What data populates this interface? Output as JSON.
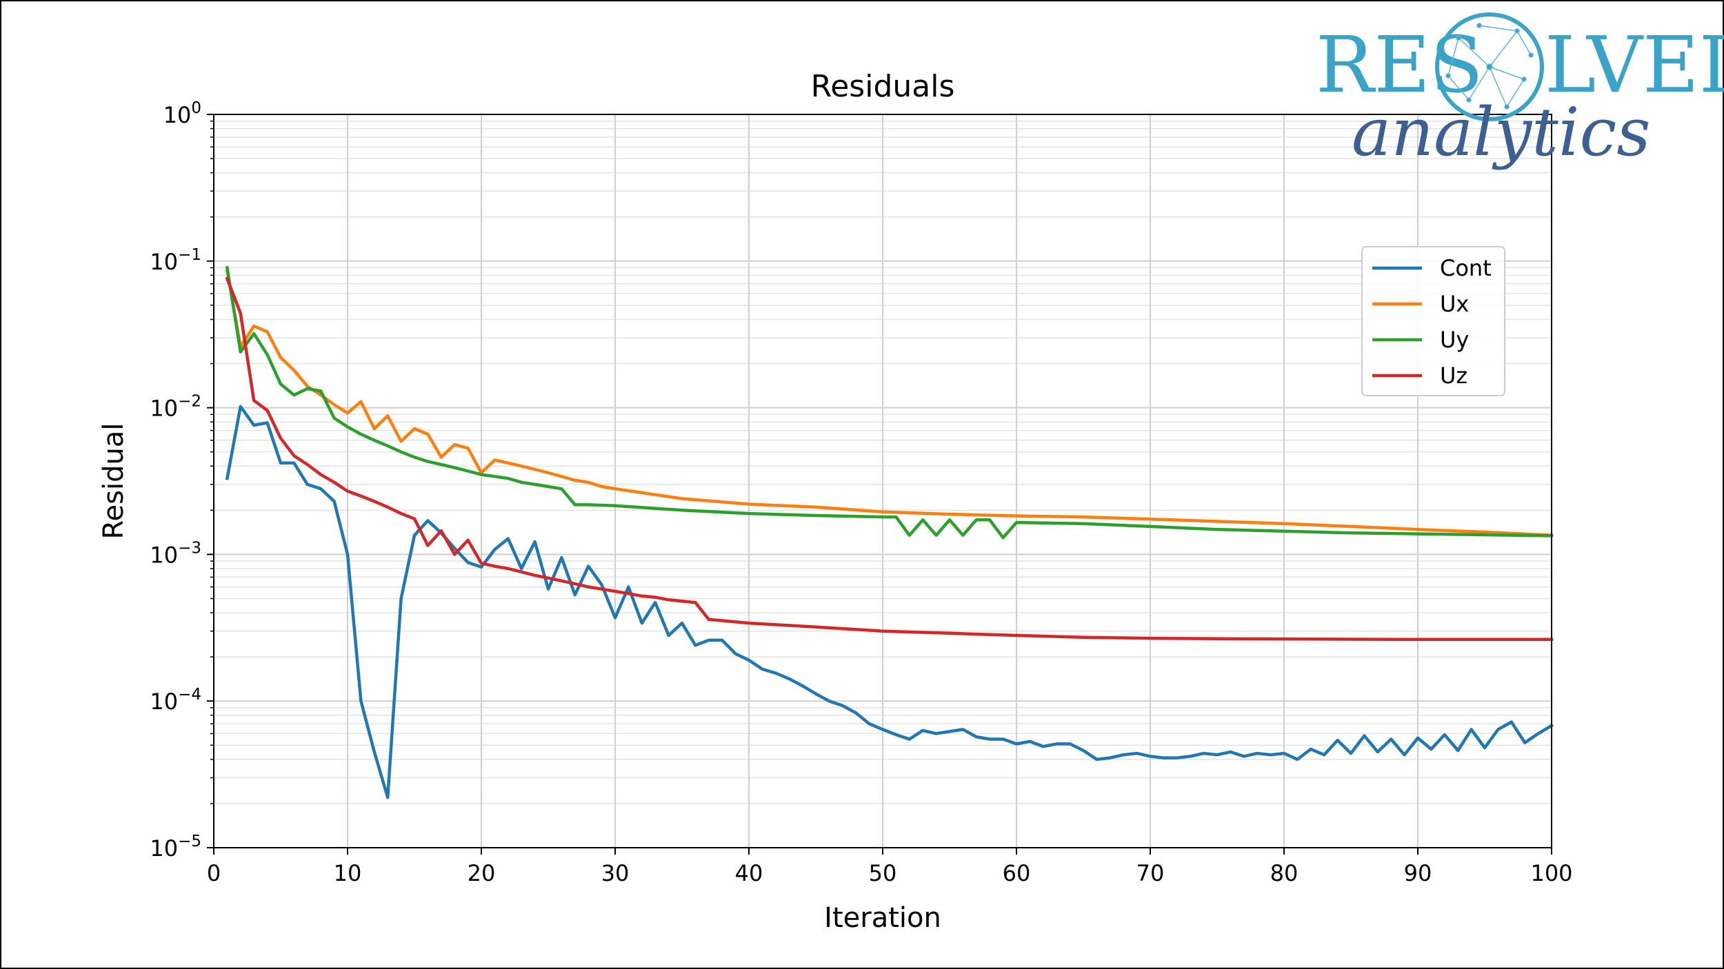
{
  "brand": {
    "word_left": "RES",
    "word_right": "LVED",
    "script": "analytics",
    "colors": {
      "word": "#3aa3c8",
      "script": "#3d5f92"
    }
  },
  "chart_data": {
    "type": "line",
    "title": "Residuals",
    "xlabel": "Iteration",
    "ylabel": "Residual",
    "xlim": [
      0,
      100
    ],
    "ylim": [
      1e-05,
      1
    ],
    "yscale": "log",
    "grid": true,
    "legend_position": "upper-right",
    "xticks": [
      "0",
      "10",
      "20",
      "30",
      "40",
      "50",
      "60",
      "70",
      "80",
      "90",
      "100"
    ],
    "yticks": [
      {
        "base": "10",
        "exp": "0"
      },
      {
        "base": "10",
        "exp": "−1"
      },
      {
        "base": "10",
        "exp": "−2"
      },
      {
        "base": "10",
        "exp": "−3"
      },
      {
        "base": "10",
        "exp": "−4"
      },
      {
        "base": "10",
        "exp": "−5"
      }
    ],
    "series": [
      {
        "name": "Cont",
        "color": "#1f77b4",
        "points": [
          [
            1,
            0.0033
          ],
          [
            2,
            0.0102
          ],
          [
            3,
            0.0076
          ],
          [
            4,
            0.0079
          ],
          [
            5,
            0.0042
          ],
          [
            6,
            0.0042
          ],
          [
            7,
            0.003
          ],
          [
            8,
            0.0028
          ],
          [
            9,
            0.0023
          ],
          [
            10,
            0.001
          ],
          [
            11,
            0.0001
          ],
          [
            12,
            4.5e-05
          ],
          [
            13,
            2.2e-05
          ],
          [
            14,
            0.0005
          ],
          [
            15,
            0.00135
          ],
          [
            16,
            0.0017
          ],
          [
            17,
            0.0014
          ],
          [
            18,
            0.0011
          ],
          [
            19,
            0.00088
          ],
          [
            20,
            0.00082
          ],
          [
            21,
            0.00108
          ],
          [
            22,
            0.00128
          ],
          [
            23,
            0.0008
          ],
          [
            24,
            0.00122
          ],
          [
            25,
            0.00058
          ],
          [
            26,
            0.00095
          ],
          [
            27,
            0.00053
          ],
          [
            28,
            0.00083
          ],
          [
            29,
            0.00062
          ],
          [
            30,
            0.00037
          ],
          [
            31,
            0.0006
          ],
          [
            32,
            0.00034
          ],
          [
            33,
            0.00047
          ],
          [
            34,
            0.00028
          ],
          [
            35,
            0.00034
          ],
          [
            36,
            0.00024
          ],
          [
            37,
            0.00026
          ],
          [
            38,
            0.00026
          ],
          [
            39,
            0.00021
          ],
          [
            40,
            0.00019
          ],
          [
            41,
            0.000165
          ],
          [
            42,
            0.000155
          ],
          [
            43,
            0.000142
          ],
          [
            44,
            0.000127
          ],
          [
            45,
            0.000112
          ],
          [
            46,
            0.0001
          ],
          [
            47,
            9.3e-05
          ],
          [
            48,
            8.3e-05
          ],
          [
            49,
            7e-05
          ],
          [
            50,
            6.4e-05
          ],
          [
            51,
            5.9e-05
          ],
          [
            52,
            5.5e-05
          ],
          [
            53,
            6.3e-05
          ],
          [
            54,
            6e-05
          ],
          [
            55,
            6.2e-05
          ],
          [
            56,
            6.4e-05
          ],
          [
            57,
            5.7e-05
          ],
          [
            58,
            5.5e-05
          ],
          [
            59,
            5.5e-05
          ],
          [
            60,
            5.1e-05
          ],
          [
            61,
            5.3e-05
          ],
          [
            62,
            4.9e-05
          ],
          [
            63,
            5.1e-05
          ],
          [
            64,
            5.1e-05
          ],
          [
            65,
            4.6e-05
          ],
          [
            66,
            4e-05
          ],
          [
            67,
            4.1e-05
          ],
          [
            68,
            4.3e-05
          ],
          [
            69,
            4.4e-05
          ],
          [
            70,
            4.2e-05
          ],
          [
            71,
            4.1e-05
          ],
          [
            72,
            4.1e-05
          ],
          [
            73,
            4.2e-05
          ],
          [
            74,
            4.4e-05
          ],
          [
            75,
            4.3e-05
          ],
          [
            76,
            4.5e-05
          ],
          [
            77,
            4.2e-05
          ],
          [
            78,
            4.4e-05
          ],
          [
            79,
            4.3e-05
          ],
          [
            80,
            4.4e-05
          ],
          [
            81,
            4e-05
          ],
          [
            82,
            4.7e-05
          ],
          [
            83,
            4.3e-05
          ],
          [
            84,
            5.4e-05
          ],
          [
            85,
            4.4e-05
          ],
          [
            86,
            5.8e-05
          ],
          [
            87,
            4.5e-05
          ],
          [
            88,
            5.5e-05
          ],
          [
            89,
            4.3e-05
          ],
          [
            90,
            5.6e-05
          ],
          [
            91,
            4.7e-05
          ],
          [
            92,
            5.9e-05
          ],
          [
            93,
            4.6e-05
          ],
          [
            94,
            6.4e-05
          ],
          [
            95,
            4.8e-05
          ],
          [
            96,
            6.4e-05
          ],
          [
            97,
            7.2e-05
          ],
          [
            98,
            5.2e-05
          ],
          [
            99,
            6e-05
          ],
          [
            100,
            6.8e-05
          ]
        ]
      },
      {
        "name": "Ux",
        "color": "#ff7f0e",
        "points": [
          [
            1,
            0.086
          ],
          [
            2,
            0.026
          ],
          [
            3,
            0.036
          ],
          [
            4,
            0.033
          ],
          [
            5,
            0.022
          ],
          [
            6,
            0.018
          ],
          [
            7,
            0.014
          ],
          [
            8,
            0.0122
          ],
          [
            9,
            0.0105
          ],
          [
            10,
            0.0092
          ],
          [
            11,
            0.011
          ],
          [
            12,
            0.0072
          ],
          [
            13,
            0.0088
          ],
          [
            14,
            0.0059
          ],
          [
            15,
            0.0072
          ],
          [
            16,
            0.0066
          ],
          [
            17,
            0.0046
          ],
          [
            18,
            0.0056
          ],
          [
            19,
            0.0053
          ],
          [
            20,
            0.0036
          ],
          [
            21,
            0.0044
          ],
          [
            22,
            0.0042
          ],
          [
            23,
            0.004
          ],
          [
            24,
            0.0038
          ],
          [
            25,
            0.0036
          ],
          [
            26,
            0.0034
          ],
          [
            27,
            0.0032
          ],
          [
            28,
            0.0031
          ],
          [
            29,
            0.0029
          ],
          [
            30,
            0.0028
          ],
          [
            35,
            0.0024
          ],
          [
            40,
            0.0022
          ],
          [
            45,
            0.0021
          ],
          [
            50,
            0.00195
          ],
          [
            55,
            0.00188
          ],
          [
            60,
            0.00183
          ],
          [
            65,
            0.0018
          ],
          [
            70,
            0.00174
          ],
          [
            75,
            0.00168
          ],
          [
            80,
            0.00162
          ],
          [
            85,
            0.00155
          ],
          [
            90,
            0.00148
          ],
          [
            95,
            0.00142
          ],
          [
            100,
            0.00135
          ]
        ]
      },
      {
        "name": "Uy",
        "color": "#2ca02c",
        "points": [
          [
            1,
            0.09
          ],
          [
            2,
            0.024
          ],
          [
            3,
            0.032
          ],
          [
            4,
            0.023
          ],
          [
            5,
            0.0145
          ],
          [
            6,
            0.0122
          ],
          [
            7,
            0.0135
          ],
          [
            8,
            0.013
          ],
          [
            9,
            0.0085
          ],
          [
            10,
            0.0074
          ],
          [
            11,
            0.0066
          ],
          [
            12,
            0.006
          ],
          [
            13,
            0.0055
          ],
          [
            14,
            0.005
          ],
          [
            15,
            0.0046
          ],
          [
            16,
            0.0043
          ],
          [
            17,
            0.0041
          ],
          [
            18,
            0.0039
          ],
          [
            19,
            0.0037
          ],
          [
            20,
            0.0035
          ],
          [
            21,
            0.0034
          ],
          [
            22,
            0.0033
          ],
          [
            23,
            0.0031
          ],
          [
            24,
            0.003
          ],
          [
            25,
            0.0029
          ],
          [
            26,
            0.0028
          ],
          [
            27,
            0.00218
          ],
          [
            28,
            0.00218
          ],
          [
            30,
            0.00215
          ],
          [
            35,
            0.002
          ],
          [
            40,
            0.0019
          ],
          [
            45,
            0.00184
          ],
          [
            50,
            0.0018
          ],
          [
            51,
            0.0018
          ],
          [
            52,
            0.00135
          ],
          [
            53,
            0.00172
          ],
          [
            54,
            0.00135
          ],
          [
            55,
            0.00172
          ],
          [
            56,
            0.00135
          ],
          [
            57,
            0.00172
          ],
          [
            58,
            0.00172
          ],
          [
            59,
            0.0013
          ],
          [
            60,
            0.00165
          ],
          [
            65,
            0.00162
          ],
          [
            70,
            0.00155
          ],
          [
            75,
            0.00148
          ],
          [
            80,
            0.00144
          ],
          [
            85,
            0.0014
          ],
          [
            90,
            0.00138
          ],
          [
            95,
            0.00136
          ],
          [
            100,
            0.00134
          ]
        ]
      },
      {
        "name": "Uz",
        "color": "#d62728",
        "points": [
          [
            1,
            0.076
          ],
          [
            2,
            0.044
          ],
          [
            3,
            0.0112
          ],
          [
            4,
            0.0096
          ],
          [
            5,
            0.0062
          ],
          [
            6,
            0.0047
          ],
          [
            7,
            0.0041
          ],
          [
            8,
            0.0035
          ],
          [
            9,
            0.0031
          ],
          [
            10,
            0.0027
          ],
          [
            11,
            0.0025
          ],
          [
            12,
            0.0023
          ],
          [
            13,
            0.0021
          ],
          [
            14,
            0.0019
          ],
          [
            15,
            0.00175
          ],
          [
            16,
            0.00115
          ],
          [
            17,
            0.00145
          ],
          [
            18,
            0.001
          ],
          [
            19,
            0.00125
          ],
          [
            20,
            0.00087
          ],
          [
            21,
            0.00083
          ],
          [
            22,
            0.0008
          ],
          [
            23,
            0.00076
          ],
          [
            24,
            0.00072
          ],
          [
            25,
            0.00069
          ],
          [
            26,
            0.00066
          ],
          [
            27,
            0.00063
          ],
          [
            28,
            0.0006
          ],
          [
            29,
            0.00058
          ],
          [
            30,
            0.00056
          ],
          [
            31,
            0.00054
          ],
          [
            32,
            0.00052
          ],
          [
            33,
            0.00051
          ],
          [
            34,
            0.00049
          ],
          [
            35,
            0.00048
          ],
          [
            36,
            0.00047
          ],
          [
            37,
            0.00036
          ],
          [
            40,
            0.00034
          ],
          [
            45,
            0.00032
          ],
          [
            50,
            0.0003
          ],
          [
            55,
            0.00029
          ],
          [
            60,
            0.00028
          ],
          [
            65,
            0.000272
          ],
          [
            70,
            0.000268
          ],
          [
            75,
            0.000266
          ],
          [
            80,
            0.000265
          ],
          [
            85,
            0.000264
          ],
          [
            90,
            0.000263
          ],
          [
            95,
            0.000263
          ],
          [
            100,
            0.000263
          ]
        ]
      }
    ]
  }
}
